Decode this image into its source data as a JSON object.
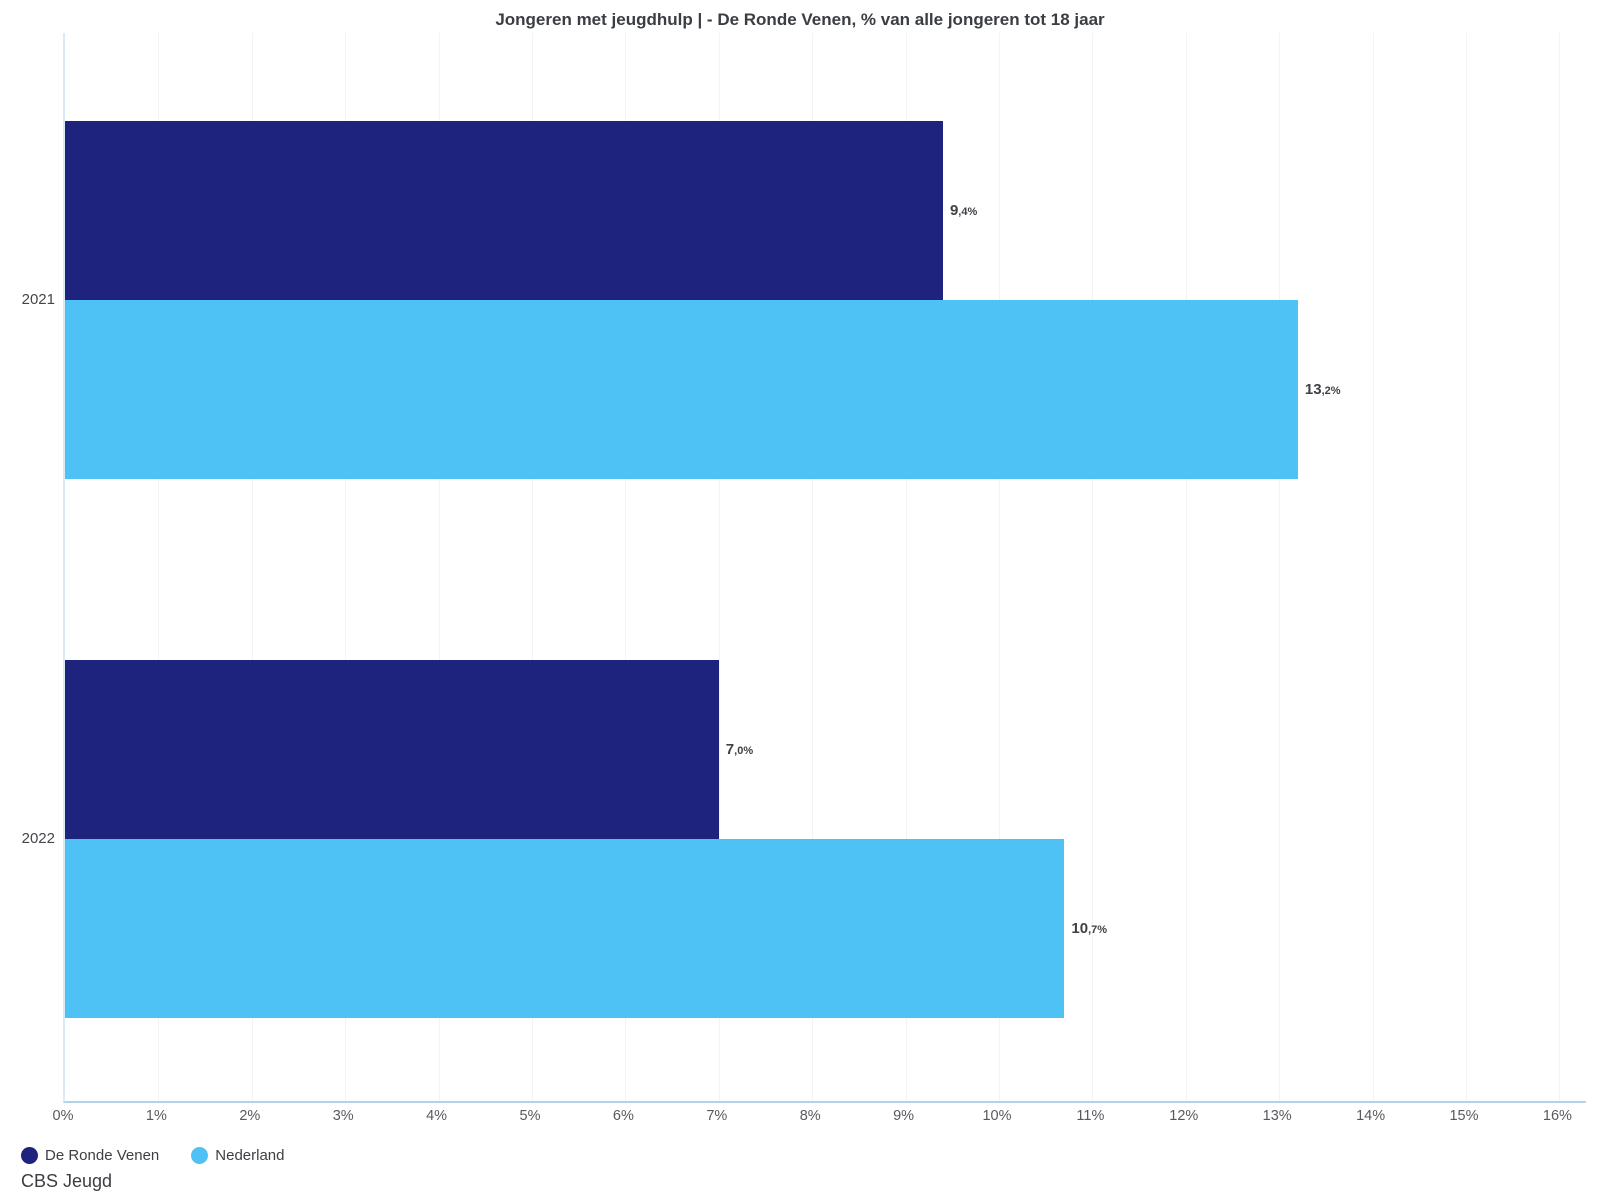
{
  "title": "Jongeren met jeugdhulp | - De Ronde Venen, % van alle jongeren tot 18 jaar",
  "footer": {
    "source": "CBS Jeugd"
  },
  "legend": {
    "position": "bottom-left",
    "items": [
      {
        "label": "De Ronde Venen",
        "color": "#1e237e"
      },
      {
        "label": "Nederland",
        "color": "#4ec2f5"
      }
    ]
  },
  "chart_data": {
    "type": "bar",
    "orientation": "horizontal",
    "title": "Jongeren met jeugdhulp | - De Ronde Venen, % van alle jongeren tot 18 jaar",
    "categories": [
      "2021",
      "2022"
    ],
    "series": [
      {
        "name": "De Ronde Venen",
        "color": "#1e237e",
        "values": [
          9.4,
          7.0
        ],
        "labels": [
          "9,4%",
          "7,0%"
        ]
      },
      {
        "name": "Nederland",
        "color": "#4ec2f5",
        "values": [
          13.2,
          10.7
        ],
        "labels": [
          "13,2%",
          "10,7%"
        ]
      }
    ],
    "xlabel": "",
    "ylabel": "",
    "xlim": [
      0,
      16
    ],
    "x_tick_step": 1,
    "x_tick_labels": [
      "0%",
      "1%",
      "2%",
      "3%",
      "4%",
      "5%",
      "6%",
      "7%",
      "8%",
      "9%",
      "10%",
      "11%",
      "12%",
      "13%",
      "14%",
      "15%",
      "16%"
    ],
    "grid": "vertical-faint",
    "legend_position": "bottom-left",
    "colors": {
      "axis_line_bottom": "#aed6ea",
      "axis_line_left": "#d8ebf6",
      "gridline": "#f3f3f3",
      "value_label": "#3f4146",
      "tick_label": "#56595f"
    }
  }
}
